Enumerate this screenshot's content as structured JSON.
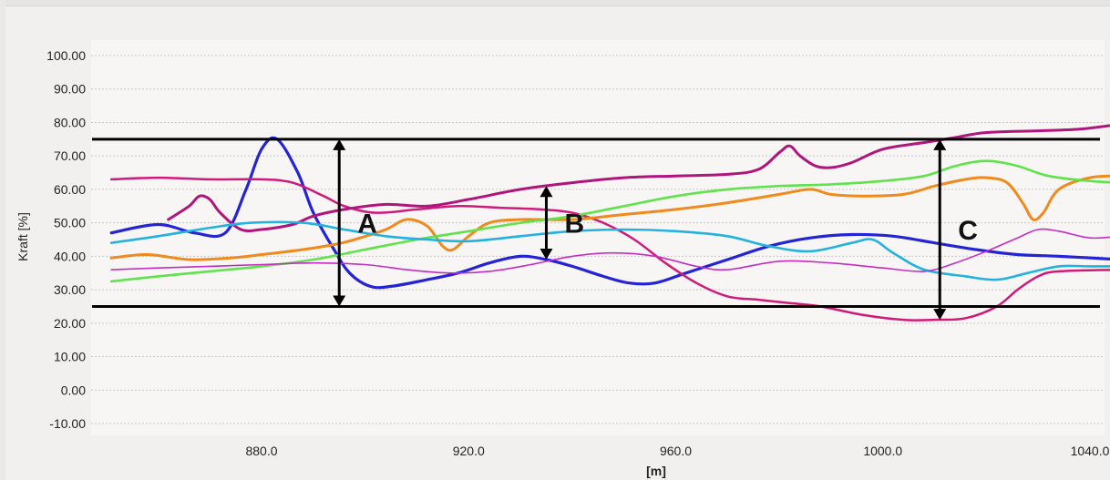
{
  "chart_data": {
    "type": "line",
    "title": "",
    "xlabel": "[m]",
    "ylabel": "Kraft [%]",
    "xlim": [
      844,
      1046
    ],
    "ylim": [
      -10,
      100
    ],
    "y_ticks": [
      "100.00",
      "90.00",
      "80.00",
      "70.00",
      "60.00",
      "50.00",
      "40.00",
      "30.00",
      "20.00",
      "10.00",
      "0.00",
      "-10.00"
    ],
    "x_ticks": [
      "880.0",
      "920.0",
      "960.0",
      "1000.0",
      "1040.0"
    ],
    "grid": "dashed horizontal",
    "legend": "none",
    "reference_lines": [
      {
        "y": 75,
        "color": "#000000"
      },
      {
        "y": 25,
        "color": "#000000"
      }
    ],
    "annotations": [
      {
        "label": "A",
        "x": 895,
        "y_top": 75,
        "y_bottom": 25
      },
      {
        "label": "B",
        "x": 935,
        "y_top": 61,
        "y_bottom": 39
      },
      {
        "label": "C",
        "x": 1011,
        "y_top": 75,
        "y_bottom": 21
      }
    ],
    "series": [
      {
        "color": "#2424d6",
        "width": 3.2,
        "points": [
          [
            851,
            47
          ],
          [
            860,
            49.5
          ],
          [
            867,
            47
          ],
          [
            873,
            47
          ],
          [
            877,
            60
          ],
          [
            880,
            72
          ],
          [
            883,
            75
          ],
          [
            887,
            65
          ],
          [
            890,
            53
          ],
          [
            894,
            42
          ],
          [
            897,
            35
          ],
          [
            901,
            31
          ],
          [
            905,
            31
          ],
          [
            912,
            33
          ],
          [
            918,
            35
          ],
          [
            924,
            38
          ],
          [
            930,
            40
          ],
          [
            935,
            39
          ],
          [
            940,
            37
          ],
          [
            946,
            34
          ],
          [
            951,
            32
          ],
          [
            956,
            32
          ],
          [
            962,
            35
          ],
          [
            970,
            39
          ],
          [
            978,
            43
          ],
          [
            986,
            45.5
          ],
          [
            994,
            46.5
          ],
          [
            1002,
            46
          ],
          [
            1010,
            44
          ],
          [
            1018,
            42
          ],
          [
            1026,
            40.5
          ],
          [
            1034,
            40
          ],
          [
            1046,
            39
          ]
        ]
      },
      {
        "color": "#cf1a7a",
        "width": 2.5,
        "points": [
          [
            851,
            63
          ],
          [
            860,
            63.5
          ],
          [
            870,
            63
          ],
          [
            880,
            63
          ],
          [
            886,
            62
          ],
          [
            892,
            58
          ],
          [
            896,
            55
          ],
          [
            902,
            53
          ],
          [
            910,
            54
          ],
          [
            918,
            55
          ],
          [
            926,
            54.5
          ],
          [
            934,
            54
          ],
          [
            940,
            53
          ],
          [
            946,
            50
          ],
          [
            952,
            45
          ],
          [
            958,
            38
          ],
          [
            964,
            32
          ],
          [
            970,
            28
          ],
          [
            976,
            27
          ],
          [
            982,
            26
          ],
          [
            988,
            25
          ],
          [
            996,
            22.5
          ],
          [
            1004,
            21
          ],
          [
            1010,
            21
          ],
          [
            1016,
            21.5
          ],
          [
            1022,
            25
          ],
          [
            1026,
            30
          ],
          [
            1030,
            34
          ],
          [
            1034,
            35.5
          ],
          [
            1046,
            36
          ]
        ]
      },
      {
        "color": "#b0157c",
        "width": 3.0,
        "points": [
          [
            862,
            51
          ],
          [
            866,
            55
          ],
          [
            868,
            58
          ],
          [
            870,
            57
          ],
          [
            872,
            53
          ],
          [
            876,
            48
          ],
          [
            880,
            48
          ],
          [
            886,
            49.5
          ],
          [
            890,
            52
          ],
          [
            896,
            54
          ],
          [
            904,
            55.5
          ],
          [
            912,
            55
          ],
          [
            920,
            57
          ],
          [
            930,
            60
          ],
          [
            940,
            62
          ],
          [
            950,
            63.5
          ],
          [
            960,
            64
          ],
          [
            970,
            64.5
          ],
          [
            976,
            66
          ],
          [
            980,
            71
          ],
          [
            982,
            73
          ],
          [
            984,
            70
          ],
          [
            987,
            67
          ],
          [
            990,
            66.5
          ],
          [
            994,
            68
          ],
          [
            1000,
            72
          ],
          [
            1008,
            74
          ],
          [
            1014,
            75.5
          ],
          [
            1020,
            77
          ],
          [
            1030,
            77.5
          ],
          [
            1038,
            78
          ],
          [
            1046,
            79.5
          ]
        ]
      },
      {
        "color": "#f08a1c",
        "width": 3.0,
        "points": [
          [
            851,
            39.5
          ],
          [
            858,
            40.5
          ],
          [
            866,
            39
          ],
          [
            874,
            39.5
          ],
          [
            880,
            40.5
          ],
          [
            888,
            42
          ],
          [
            894,
            43.5
          ],
          [
            898,
            45
          ],
          [
            904,
            48
          ],
          [
            908,
            51
          ],
          [
            912,
            49
          ],
          [
            915,
            43
          ],
          [
            917,
            42
          ],
          [
            920,
            46
          ],
          [
            924,
            50
          ],
          [
            930,
            51
          ],
          [
            940,
            51
          ],
          [
            950,
            52.5
          ],
          [
            960,
            54
          ],
          [
            970,
            56
          ],
          [
            980,
            58.5
          ],
          [
            986,
            60
          ],
          [
            990,
            58.5
          ],
          [
            996,
            58
          ],
          [
            1004,
            58.5
          ],
          [
            1010,
            61
          ],
          [
            1016,
            63
          ],
          [
            1020,
            63.5
          ],
          [
            1024,
            62
          ],
          [
            1027,
            56
          ],
          [
            1029,
            51
          ],
          [
            1031,
            53
          ],
          [
            1034,
            60
          ],
          [
            1040,
            63.5
          ],
          [
            1046,
            64
          ]
        ]
      },
      {
        "color": "#5ee34a",
        "width": 2.6,
        "points": [
          [
            851,
            32.5
          ],
          [
            860,
            34
          ],
          [
            870,
            35.5
          ],
          [
            880,
            37
          ],
          [
            890,
            39
          ],
          [
            900,
            42
          ],
          [
            910,
            45
          ],
          [
            920,
            47.5
          ],
          [
            930,
            50
          ],
          [
            940,
            52
          ],
          [
            950,
            55
          ],
          [
            960,
            58
          ],
          [
            970,
            60
          ],
          [
            980,
            61
          ],
          [
            990,
            61.5
          ],
          [
            1000,
            62.5
          ],
          [
            1008,
            64
          ],
          [
            1014,
            67
          ],
          [
            1020,
            68.5
          ],
          [
            1026,
            67
          ],
          [
            1032,
            64
          ],
          [
            1040,
            62.5
          ],
          [
            1046,
            62
          ]
        ]
      },
      {
        "color": "#22b2e0",
        "width": 2.6,
        "points": [
          [
            851,
            44
          ],
          [
            860,
            46
          ],
          [
            870,
            48.5
          ],
          [
            878,
            50
          ],
          [
            888,
            50
          ],
          [
            896,
            48
          ],
          [
            904,
            46
          ],
          [
            912,
            45
          ],
          [
            920,
            44.5
          ],
          [
            930,
            46
          ],
          [
            940,
            47.5
          ],
          [
            950,
            48
          ],
          [
            960,
            47.5
          ],
          [
            970,
            46
          ],
          [
            978,
            43
          ],
          [
            986,
            41.5
          ],
          [
            994,
            44
          ],
          [
            998,
            45
          ],
          [
            1002,
            41
          ],
          [
            1008,
            36
          ],
          [
            1016,
            34
          ],
          [
            1022,
            33
          ],
          [
            1028,
            35
          ],
          [
            1034,
            37
          ],
          [
            1040,
            37
          ],
          [
            1046,
            37
          ]
        ]
      },
      {
        "color": "#c52cc5",
        "width": 1.6,
        "points": [
          [
            851,
            36
          ],
          [
            860,
            36.5
          ],
          [
            870,
            37
          ],
          [
            880,
            37.5
          ],
          [
            890,
            38
          ],
          [
            900,
            37.5
          ],
          [
            908,
            36
          ],
          [
            916,
            35
          ],
          [
            924,
            35.5
          ],
          [
            932,
            37.5
          ],
          [
            940,
            40
          ],
          [
            948,
            41
          ],
          [
            956,
            40
          ],
          [
            964,
            37
          ],
          [
            970,
            36
          ],
          [
            980,
            38.5
          ],
          [
            990,
            38
          ],
          [
            1000,
            36.5
          ],
          [
            1008,
            35.5
          ],
          [
            1014,
            38
          ],
          [
            1020,
            41.5
          ],
          [
            1026,
            45.5
          ],
          [
            1030,
            48
          ],
          [
            1034,
            47.5
          ],
          [
            1040,
            45.5
          ],
          [
            1046,
            46
          ]
        ]
      }
    ]
  }
}
